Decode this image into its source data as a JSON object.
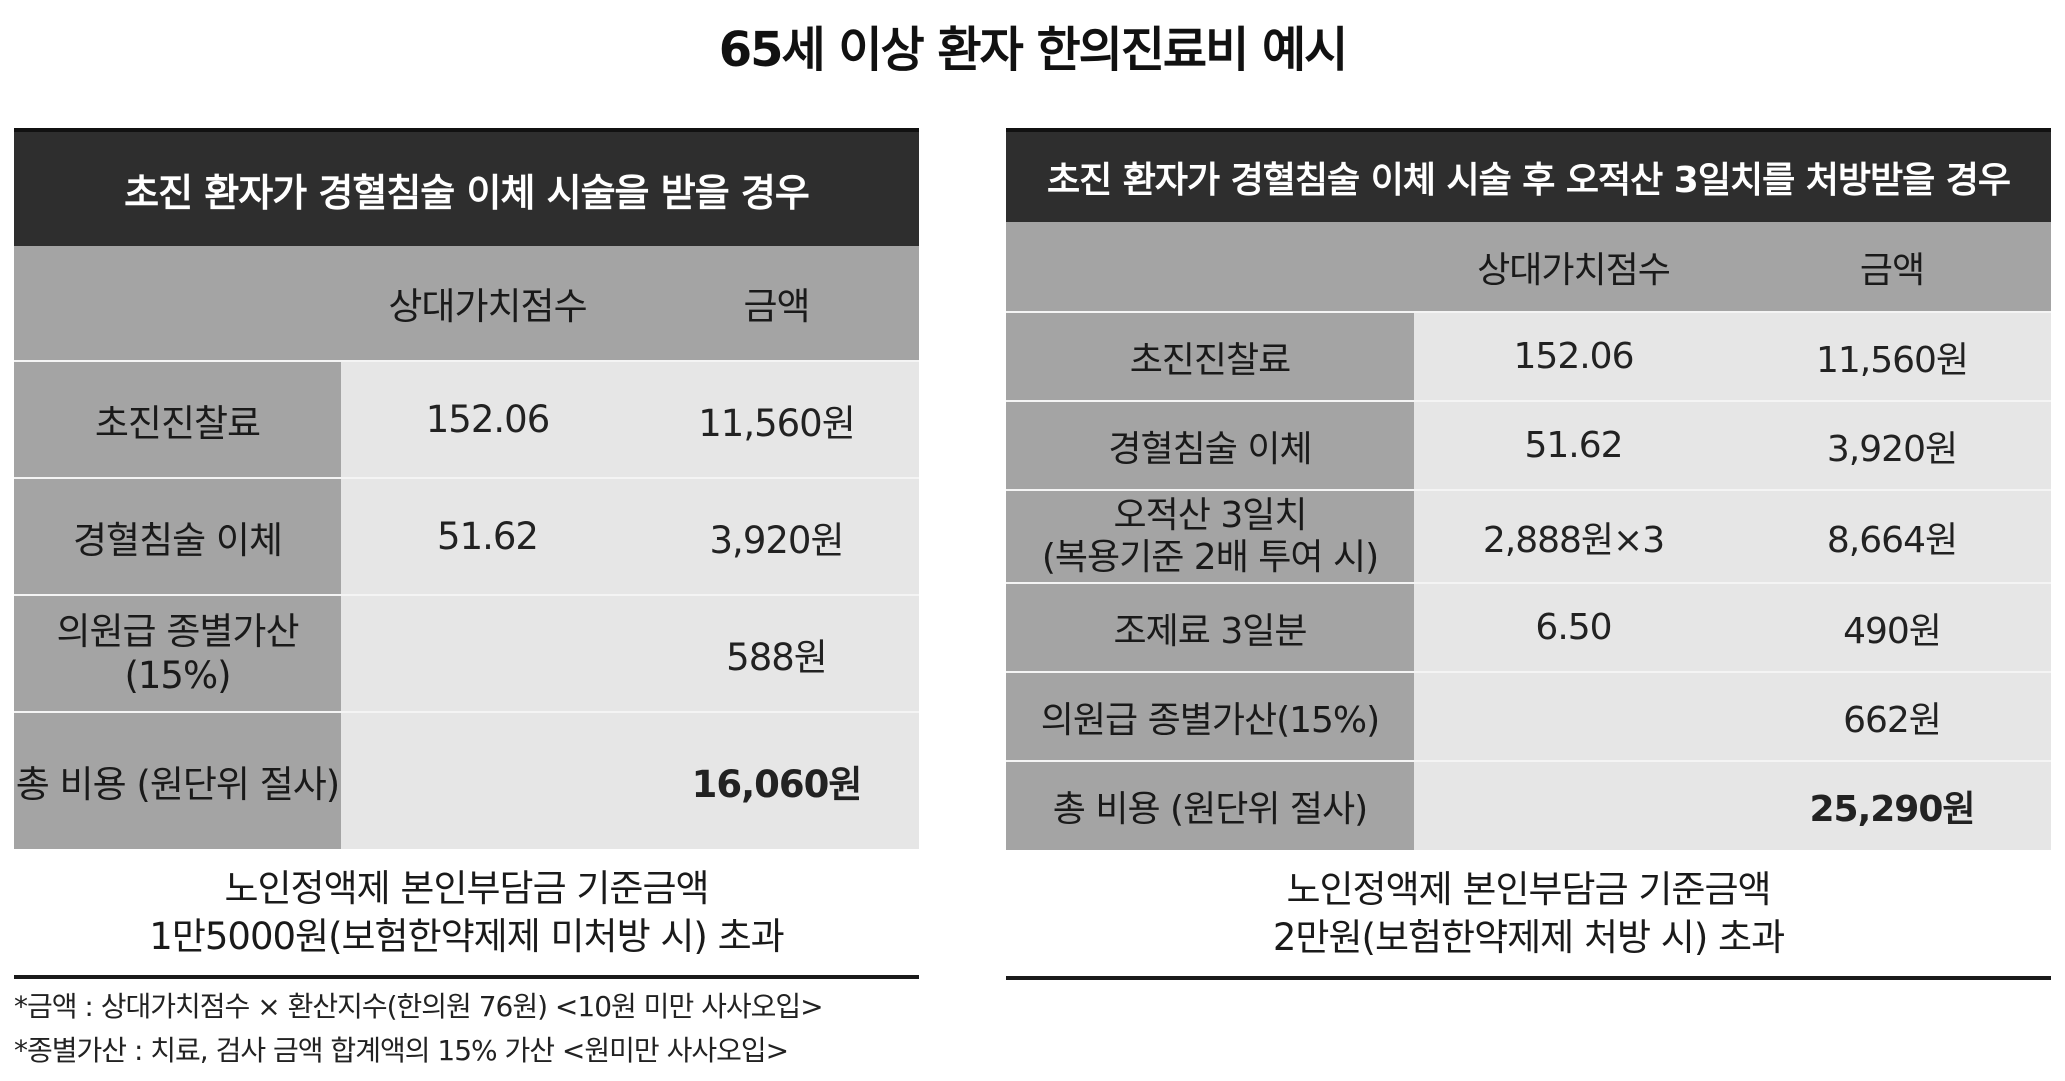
{
  "title": "65세 이상 환자 한의진료비 예시",
  "left": {
    "heading": "초진 환자가 경혈침술 이체 시술을 받을 경우",
    "columns": [
      "",
      "상대가치점수",
      "금액"
    ],
    "rows": [
      {
        "label": "초진진찰료",
        "score": "152.06",
        "amount": "11,560원"
      },
      {
        "label": "경혈침술 이체",
        "score": "51.62",
        "amount": "3,920원"
      },
      {
        "label": "의원급 종별가산\n(15%)",
        "score": "",
        "amount": "588원"
      },
      {
        "label": "총 비용 (원단위 절사)",
        "score": "",
        "amount": "16,060원"
      }
    ],
    "caption_line1": "노인정액제 본인부담금 기준금액",
    "caption_line2": "1만5000원(보험한약제제 미처방 시) 초과"
  },
  "right": {
    "heading": "초진 환자가 경혈침술 이체 시술 후 오적산 3일치를 처방받을 경우",
    "columns": [
      "",
      "상대가치점수",
      "금액"
    ],
    "rows": [
      {
        "label": "초진진찰료",
        "score": "152.06",
        "amount": "11,560원"
      },
      {
        "label": "경혈침술 이체",
        "score": "51.62",
        "amount": "3,920원"
      },
      {
        "label": "오적산 3일치\n(복용기준 2배 투여 시)",
        "score": "2,888원×3",
        "amount": "8,664원"
      },
      {
        "label": "조제료 3일분",
        "score": "6.50",
        "amount": "490원"
      },
      {
        "label": "의원급 종별가산(15%)",
        "score": "",
        "amount": "662원"
      },
      {
        "label": "총 비용 (원단위 절사)",
        "score": "",
        "amount": "25,290원"
      }
    ],
    "caption_line1": "노인정액제 본인부담금 기준금액",
    "caption_line2": "2만원(보험한약제제 처방 시) 초과"
  },
  "notes": [
    "*금액 : 상대가치점수 × 환산지수(한의원 76원) <10원 미만 사사오입>",
    "*종별가산 : 치료, 검사 금액 합계액의 15% 가산 <원미만 사사오입>"
  ]
}
